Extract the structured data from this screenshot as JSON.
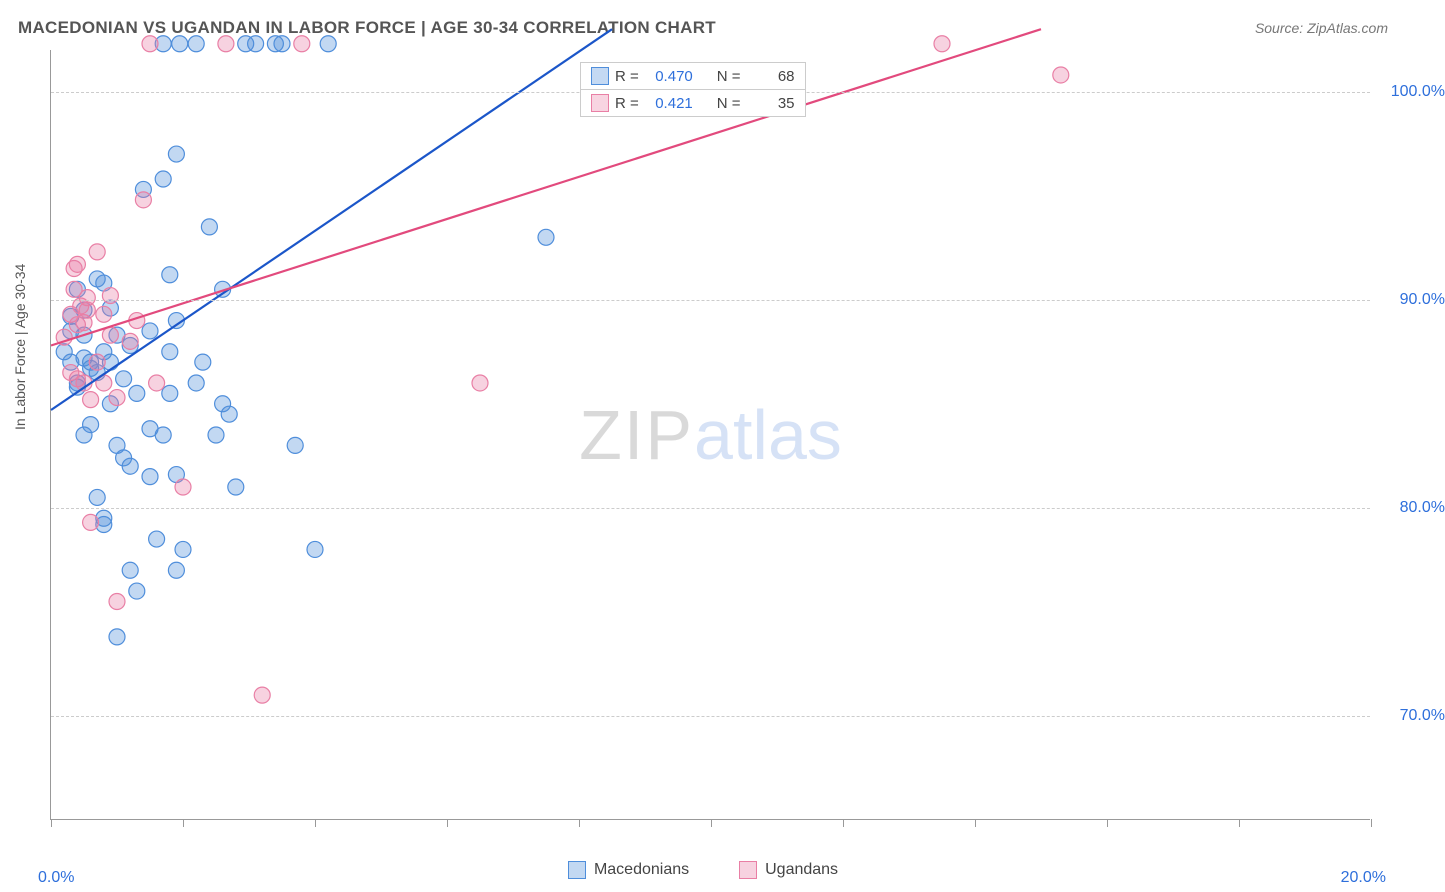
{
  "title": "MACEDONIAN VS UGANDAN IN LABOR FORCE | AGE 30-34 CORRELATION CHART",
  "source": "Source: ZipAtlas.com",
  "ylabel": "In Labor Force | Age 30-34",
  "chart": {
    "type": "scatter",
    "xlim": [
      0,
      20
    ],
    "ylim": [
      65,
      102
    ],
    "xtick_left": "0.0%",
    "xtick_right": "20.0%",
    "xtick_positions": [
      0,
      2,
      4,
      6,
      8,
      10,
      12,
      14,
      16,
      18,
      20
    ],
    "yticks": [
      {
        "v": 70,
        "label": "70.0%"
      },
      {
        "v": 80,
        "label": "80.0%"
      },
      {
        "v": 90,
        "label": "90.0%"
      },
      {
        "v": 100,
        "label": "100.0%"
      }
    ],
    "grid_color": "#cccccc",
    "background_color": "#ffffff",
    "marker_radius": 8,
    "marker_fill_opacity": 0.35,
    "marker_stroke_width": 1.2,
    "line_width": 2.2,
    "series": [
      {
        "name": "Macedonians",
        "color": "#4f8edb",
        "line_color": "#1b56c9",
        "r_value": "0.470",
        "n_value": "68",
        "trend": {
          "x1": 0,
          "y1": 84.7,
          "x2": 8.5,
          "y2": 103
        },
        "points": [
          [
            0.2,
            87.5
          ],
          [
            0.3,
            88.5
          ],
          [
            0.3,
            87
          ],
          [
            0.3,
            89.2
          ],
          [
            0.4,
            86
          ],
          [
            0.4,
            85.8
          ],
          [
            0.4,
            90.5
          ],
          [
            0.5,
            88.3
          ],
          [
            0.5,
            87.2
          ],
          [
            0.5,
            83.5
          ],
          [
            0.5,
            89.5
          ],
          [
            0.6,
            86.7
          ],
          [
            0.6,
            84
          ],
          [
            0.6,
            87
          ],
          [
            0.7,
            80.5
          ],
          [
            0.7,
            86.5
          ],
          [
            0.7,
            91
          ],
          [
            0.8,
            87.5
          ],
          [
            0.8,
            90.8
          ],
          [
            0.8,
            79.5
          ],
          [
            0.8,
            79.2
          ],
          [
            0.9,
            85
          ],
          [
            0.9,
            87
          ],
          [
            0.9,
            89.6
          ],
          [
            1.0,
            88.3
          ],
          [
            1.0,
            83
          ],
          [
            1.0,
            73.8
          ],
          [
            1.1,
            86.2
          ],
          [
            1.1,
            82.4
          ],
          [
            1.2,
            87.8
          ],
          [
            1.2,
            82
          ],
          [
            1.2,
            77
          ],
          [
            1.3,
            85.5
          ],
          [
            1.3,
            76
          ],
          [
            1.4,
            95.3
          ],
          [
            1.5,
            83.8
          ],
          [
            1.5,
            81.5
          ],
          [
            1.5,
            88.5
          ],
          [
            1.6,
            78.5
          ],
          [
            1.7,
            83.5
          ],
          [
            1.7,
            102.3
          ],
          [
            1.7,
            95.8
          ],
          [
            1.8,
            91.2
          ],
          [
            1.8,
            87.5
          ],
          [
            1.8,
            85.5
          ],
          [
            1.9,
            81.6
          ],
          [
            1.9,
            89
          ],
          [
            1.9,
            77
          ],
          [
            1.95,
            102.3
          ],
          [
            1.9,
            97
          ],
          [
            2.0,
            78
          ],
          [
            2.2,
            86
          ],
          [
            2.2,
            102.3
          ],
          [
            2.3,
            87
          ],
          [
            2.4,
            93.5
          ],
          [
            2.5,
            83.5
          ],
          [
            2.6,
            90.5
          ],
          [
            2.6,
            85
          ],
          [
            2.7,
            84.5
          ],
          [
            2.8,
            81
          ],
          [
            2.95,
            102.3
          ],
          [
            3.1,
            102.3
          ],
          [
            3.4,
            102.3
          ],
          [
            3.5,
            102.3
          ],
          [
            3.7,
            83
          ],
          [
            4.0,
            78
          ],
          [
            4.2,
            102.3
          ],
          [
            7.5,
            93
          ]
        ]
      },
      {
        "name": "Ugandans",
        "color": "#e97fa5",
        "line_color": "#e24a7d",
        "r_value": "0.421",
        "n_value": "35",
        "trend": {
          "x1": 0,
          "y1": 87.8,
          "x2": 15,
          "y2": 103
        },
        "points": [
          [
            0.2,
            88.2
          ],
          [
            0.3,
            86.5
          ],
          [
            0.3,
            89.3
          ],
          [
            0.35,
            91.5
          ],
          [
            0.35,
            90.5
          ],
          [
            0.4,
            86.2
          ],
          [
            0.4,
            88.8
          ],
          [
            0.4,
            91.7
          ],
          [
            0.45,
            89.7
          ],
          [
            0.5,
            86
          ],
          [
            0.5,
            88.9
          ],
          [
            0.55,
            90.1
          ],
          [
            0.55,
            89.5
          ],
          [
            0.6,
            79.3
          ],
          [
            0.6,
            85.2
          ],
          [
            0.7,
            92.3
          ],
          [
            0.7,
            87
          ],
          [
            0.8,
            86
          ],
          [
            0.8,
            89.3
          ],
          [
            0.9,
            88.3
          ],
          [
            0.9,
            90.2
          ],
          [
            1.0,
            85.3
          ],
          [
            1.0,
            75.5
          ],
          [
            1.2,
            88
          ],
          [
            1.3,
            89
          ],
          [
            1.4,
            94.8
          ],
          [
            1.5,
            102.3
          ],
          [
            1.6,
            86
          ],
          [
            2.0,
            81
          ],
          [
            2.65,
            102.3
          ],
          [
            3.2,
            71
          ],
          [
            3.8,
            102.3
          ],
          [
            6.5,
            86
          ],
          [
            13.5,
            102.3
          ],
          [
            15.3,
            100.8
          ]
        ]
      }
    ]
  },
  "legend_bottom": [
    {
      "label": "Macedonians",
      "color": "#4f8edb",
      "fill": "rgba(79,142,219,0.35)"
    },
    {
      "label": "Ugandans",
      "color": "#e97fa5",
      "fill": "rgba(233,127,165,0.35)"
    }
  ],
  "watermark": {
    "zip": "ZIP",
    "atlas": "atlas"
  }
}
